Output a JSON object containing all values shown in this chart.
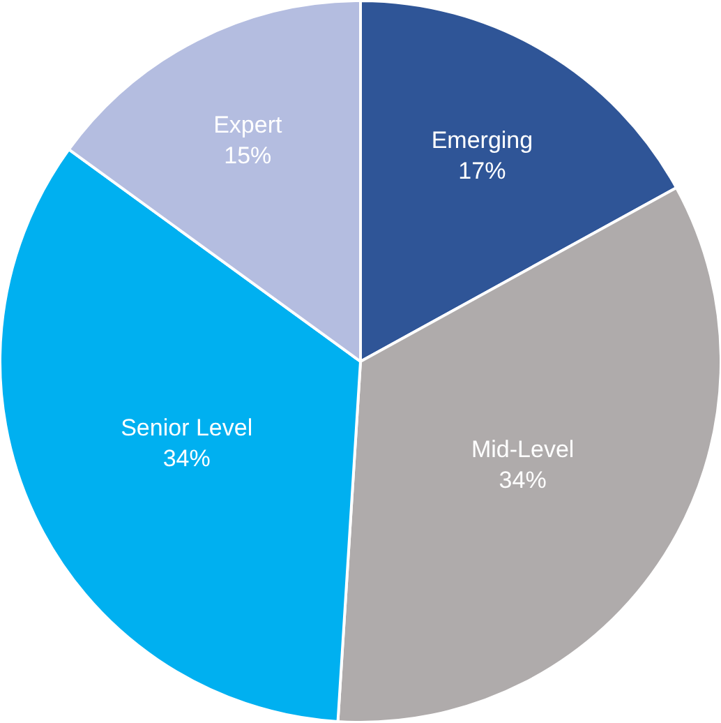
{
  "chart_data": {
    "type": "pie",
    "categories": [
      "Emerging",
      "Mid-Level",
      "Senior Level",
      "Expert"
    ],
    "values": [
      17,
      34,
      34,
      15
    ],
    "value_labels": [
      "17%",
      "34%",
      "34%",
      "15%"
    ],
    "colors": [
      "#2f5597",
      "#afabab",
      "#00b0f0",
      "#b4bde0"
    ],
    "legend": false
  }
}
